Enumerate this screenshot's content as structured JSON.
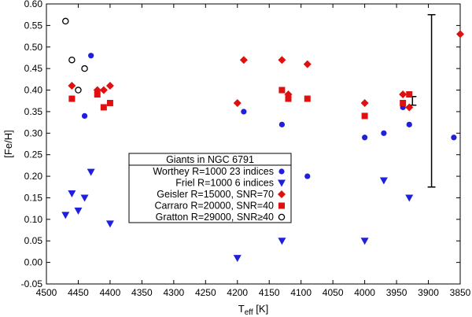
{
  "chart_data": {
    "type": "scatter",
    "title": "",
    "xlabel": {
      "main": "T",
      "sub": "eff",
      "unit": " [K]"
    },
    "ylabel": "[Fe/H]",
    "xlim": [
      4500,
      3850
    ],
    "ylim": [
      -0.05,
      0.6
    ],
    "xticks": [
      4500,
      4450,
      4400,
      4350,
      4300,
      4250,
      4200,
      4150,
      4100,
      4050,
      4000,
      3950,
      3900,
      3850
    ],
    "yticks": [
      -0.05,
      0.0,
      0.05,
      0.1,
      0.15,
      0.2,
      0.25,
      0.3,
      0.35,
      0.4,
      0.45,
      0.5,
      0.55,
      0.6
    ],
    "grid": false,
    "legend_title": "Giants in NGC 6791",
    "series": [
      {
        "name": "Worthey R=1000 23 indices",
        "marker": "circle",
        "color": "#1f1fdc",
        "points": [
          [
            4430,
            0.48
          ],
          [
            4440,
            0.34
          ],
          [
            4190,
            0.35
          ],
          [
            4130,
            0.32
          ],
          [
            4090,
            0.2
          ],
          [
            4000,
            0.29
          ],
          [
            3970,
            0.3
          ],
          [
            3940,
            0.36
          ],
          [
            3930,
            0.32
          ],
          [
            3860,
            0.29
          ]
        ]
      },
      {
        "name": "Friel R=1000 6 indices",
        "marker": "triangle-down",
        "color": "#1f1fdc",
        "points": [
          [
            4470,
            0.11
          ],
          [
            4460,
            0.16
          ],
          [
            4450,
            0.12
          ],
          [
            4440,
            0.15
          ],
          [
            4430,
            0.21
          ],
          [
            4400,
            0.09
          ],
          [
            4200,
            0.01
          ],
          [
            4130,
            0.05
          ],
          [
            4000,
            0.05
          ],
          [
            3970,
            0.19
          ],
          [
            3930,
            0.15
          ]
        ]
      },
      {
        "name": "Geisler R=15000, SNR=70",
        "marker": "diamond",
        "color": "#e01010",
        "points": [
          [
            4460,
            0.41
          ],
          [
            4420,
            0.4
          ],
          [
            4410,
            0.4
          ],
          [
            4400,
            0.41
          ],
          [
            4200,
            0.37
          ],
          [
            4190,
            0.47
          ],
          [
            4130,
            0.47
          ],
          [
            4120,
            0.39
          ],
          [
            4090,
            0.46
          ],
          [
            4000,
            0.37
          ],
          [
            3940,
            0.39
          ],
          [
            3930,
            0.36
          ],
          [
            3850,
            0.53
          ]
        ]
      },
      {
        "name": "Carraro R=20000, SNR=40",
        "marker": "square",
        "color": "#e01010",
        "points": [
          [
            4460,
            0.38
          ],
          [
            4420,
            0.39
          ],
          [
            4410,
            0.36
          ],
          [
            4400,
            0.37
          ],
          [
            4130,
            0.4
          ],
          [
            4120,
            0.38
          ],
          [
            4090,
            0.38
          ],
          [
            4000,
            0.34
          ],
          [
            3940,
            0.37
          ],
          [
            3930,
            0.39
          ]
        ]
      },
      {
        "name": "Gratton R=29000, SNR≥40",
        "marker": "open-circle",
        "color": "#000000",
        "points": [
          [
            4470,
            0.56
          ],
          [
            4460,
            0.47
          ],
          [
            4450,
            0.4
          ],
          [
            4440,
            0.45
          ]
        ]
      }
    ],
    "error_bars": [
      {
        "x": 3925,
        "y": 0.375,
        "err": 0.01
      },
      {
        "x": 3895,
        "y": 0.375,
        "err": 0.2
      }
    ]
  }
}
